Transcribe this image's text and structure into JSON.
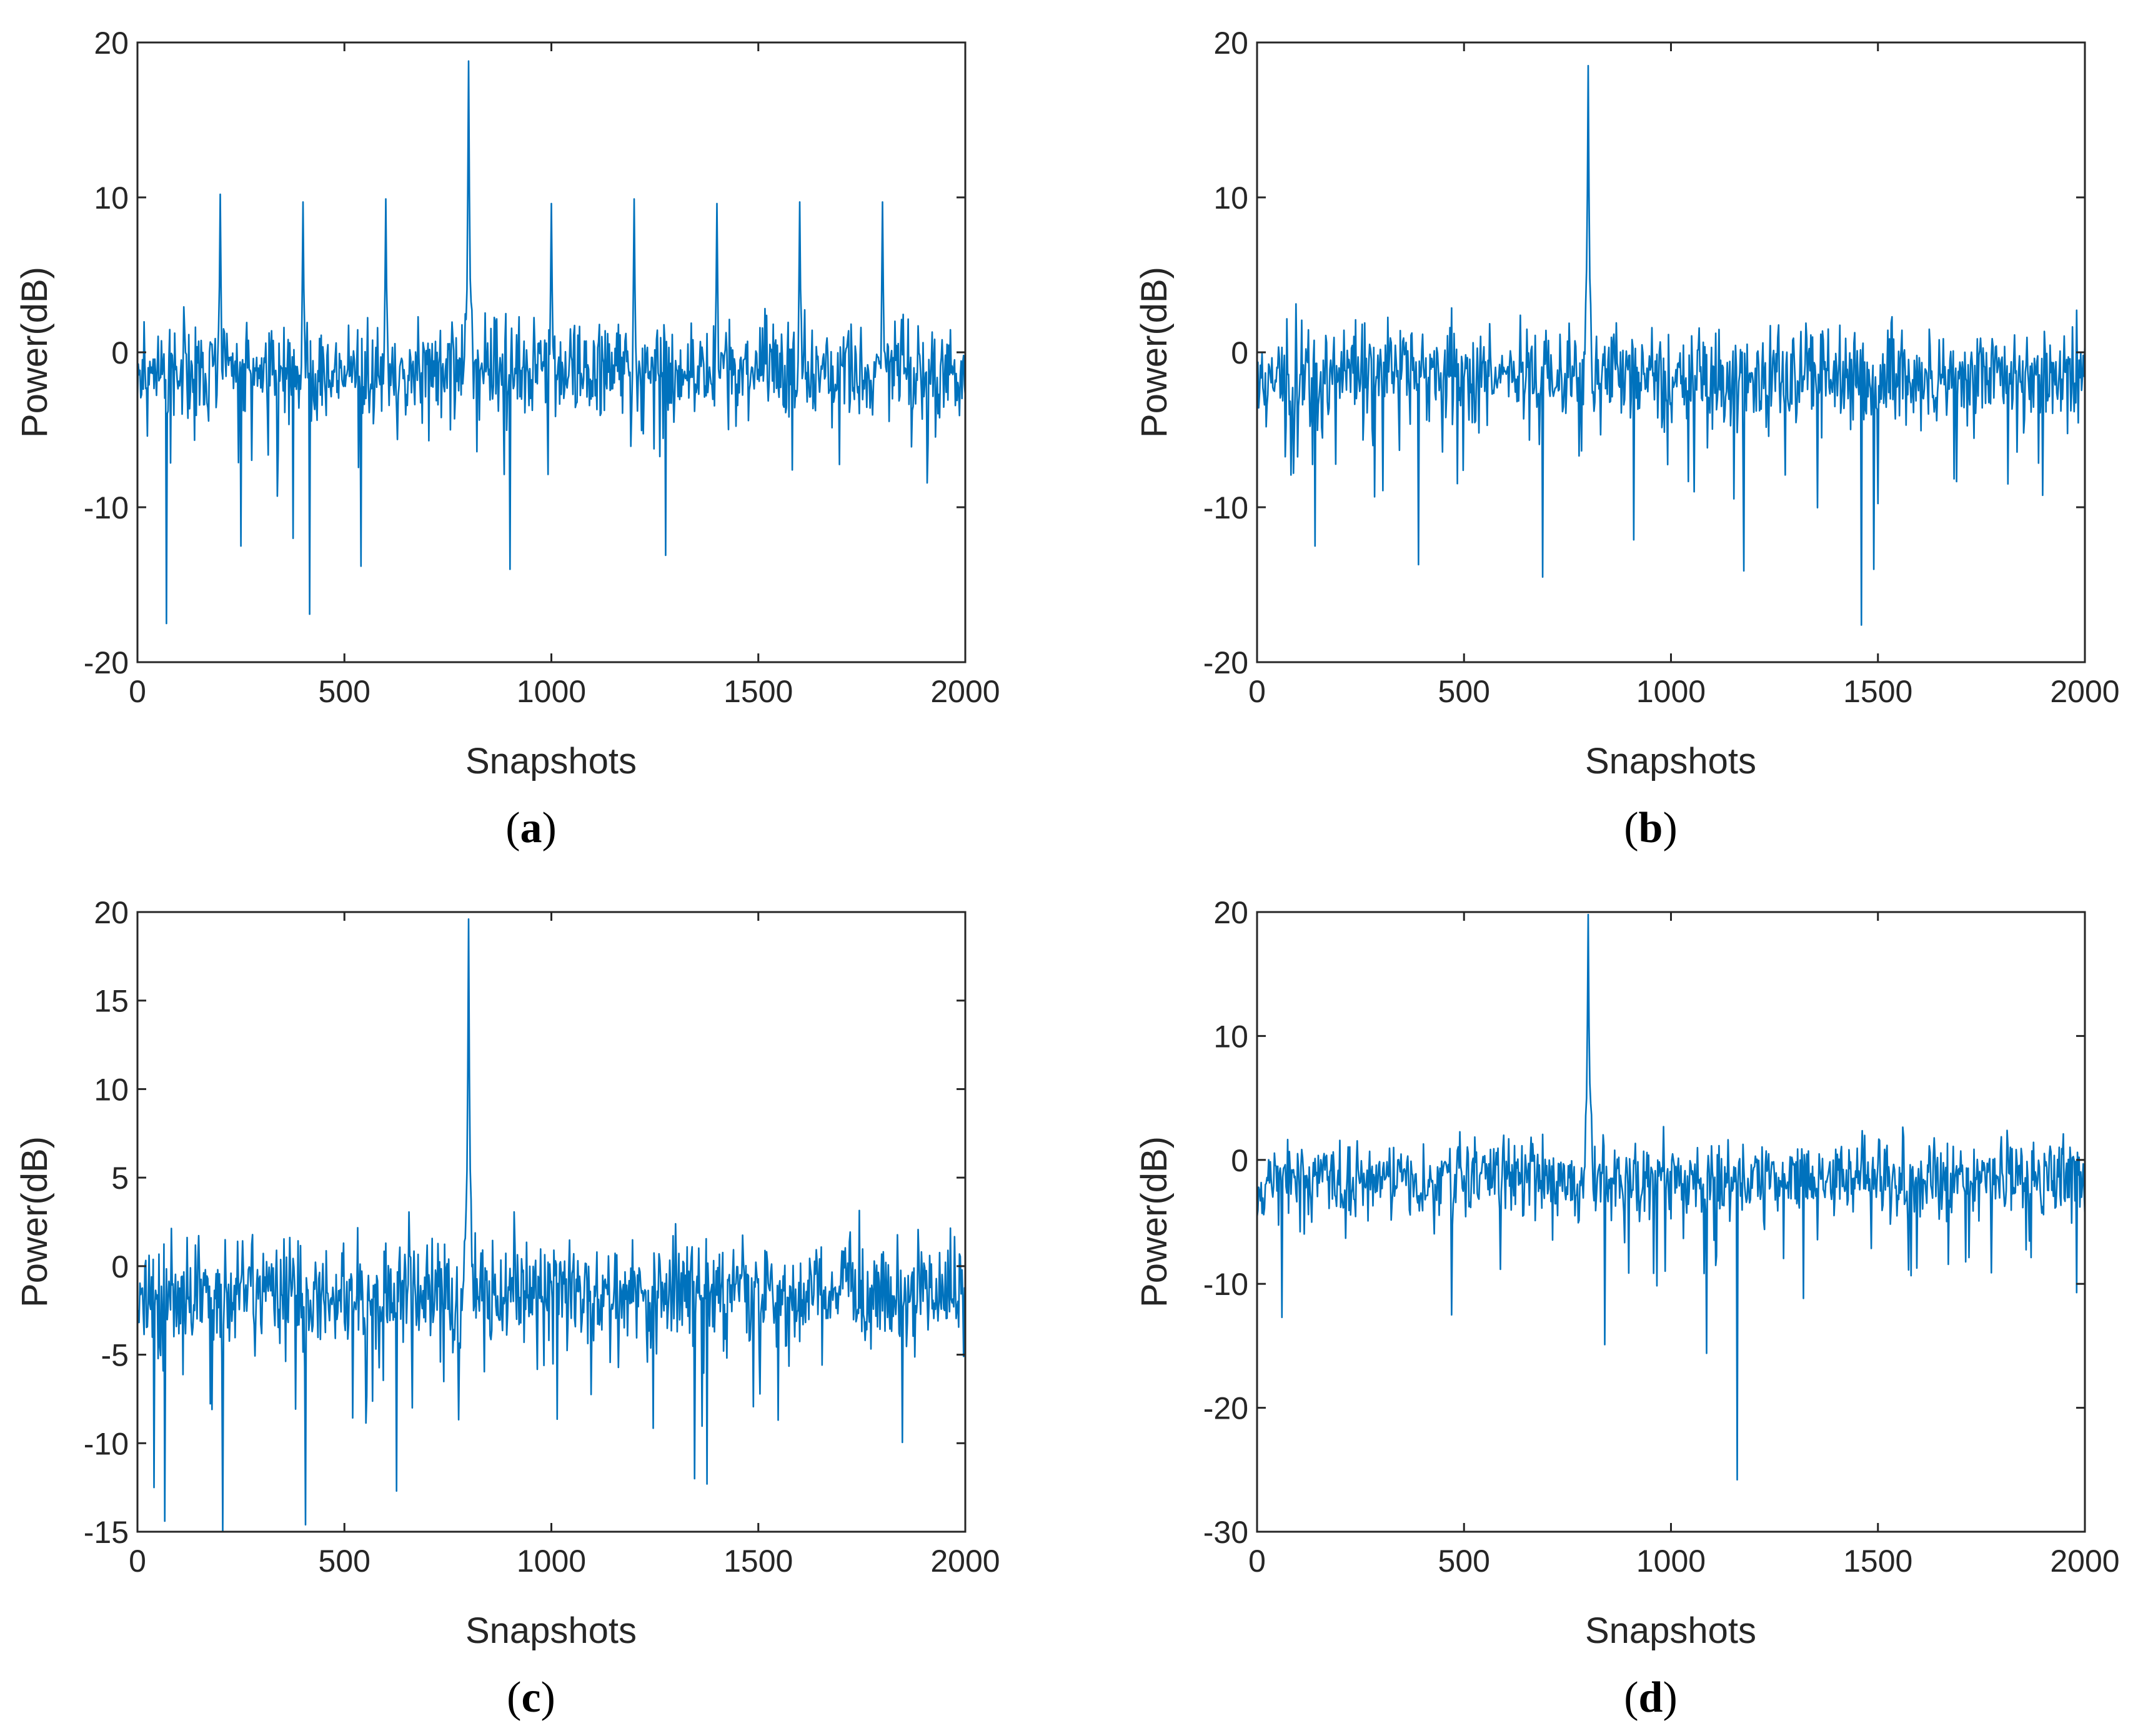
{
  "figure": {
    "line_color": "#0072BD",
    "axis_color": "#262626"
  },
  "chart_data": [
    {
      "id": "a",
      "type": "line",
      "caption_letter": "a",
      "xlabel": "Snapshots",
      "ylabel": "Power(dB)",
      "xlim": [
        0,
        2000
      ],
      "ylim": [
        -20,
        20
      ],
      "xticks": [
        0,
        500,
        1000,
        1500,
        2000
      ],
      "yticks": [
        -20,
        -10,
        0,
        10,
        20
      ],
      "x_tick_labels": [
        "0",
        "500",
        "1000",
        "1500",
        "2000"
      ],
      "y_tick_labels": [
        "-20",
        "-10",
        "0",
        "10",
        "20"
      ],
      "noise_level": -1.2,
      "noise_spread": 2.8,
      "seed": 11,
      "peaks": [
        {
          "x": 200,
          "y": 10.2
        },
        {
          "x": 400,
          "y": 9.7
        },
        {
          "x": 600,
          "y": 9.9
        },
        {
          "x": 800,
          "y": 18.8
        },
        {
          "x": 1000,
          "y": 9.6
        },
        {
          "x": 1200,
          "y": 9.9
        },
        {
          "x": 1400,
          "y": 9.6
        },
        {
          "x": 1600,
          "y": 9.7
        },
        {
          "x": 1800,
          "y": 9.7
        }
      ],
      "dips": [
        {
          "x": 70,
          "y": -17.5
        },
        {
          "x": 415,
          "y": -16.9
        },
        {
          "x": 540,
          "y": -13.8
        },
        {
          "x": 900,
          "y": -14.0
        },
        {
          "x": 1275,
          "y": -13.1
        },
        {
          "x": 250,
          "y": -12.5
        },
        {
          "x": 375,
          "y": -12.0
        }
      ]
    },
    {
      "id": "b",
      "type": "line",
      "caption_letter": "b",
      "xlabel": "Snapshots",
      "ylabel": "Power(dB)",
      "xlim": [
        0,
        2000
      ],
      "ylim": [
        -20,
        20
      ],
      "xticks": [
        0,
        500,
        1000,
        1500,
        2000
      ],
      "yticks": [
        -20,
        -10,
        0,
        10,
        20
      ],
      "x_tick_labels": [
        "0",
        "500",
        "1000",
        "1500",
        "2000"
      ],
      "y_tick_labels": [
        "-20",
        "-10",
        "0",
        "10",
        "20"
      ],
      "noise_level": -1.5,
      "noise_spread": 2.8,
      "seed": 23,
      "peaks": [
        {
          "x": 800,
          "y": 18.5
        }
      ],
      "dips": [
        {
          "x": 1460,
          "y": -17.6
        },
        {
          "x": 690,
          "y": -14.5
        },
        {
          "x": 1175,
          "y": -14.1
        },
        {
          "x": 1490,
          "y": -14.0
        },
        {
          "x": 390,
          "y": -13.7
        },
        {
          "x": 140,
          "y": -12.5
        },
        {
          "x": 910,
          "y": -12.1
        }
      ]
    },
    {
      "id": "c",
      "type": "line",
      "caption_letter": "c",
      "xlabel": "Snapshots",
      "ylabel": "Power(dB)",
      "xlim": [
        0,
        2000
      ],
      "ylim": [
        -15,
        20
      ],
      "xticks": [
        0,
        500,
        1000,
        1500,
        2000
      ],
      "yticks": [
        -15,
        -10,
        -5,
        0,
        5,
        10,
        15,
        20
      ],
      "x_tick_labels": [
        "0",
        "500",
        "1000",
        "1500",
        "2000"
      ],
      "y_tick_labels": [
        "-15",
        "-10",
        "-5",
        "0",
        "5",
        "10",
        "15",
        "20"
      ],
      "noise_level": -1.5,
      "noise_spread": 2.8,
      "seed": 37,
      "peaks": [
        {
          "x": 800,
          "y": 19.6
        }
      ],
      "dips": [
        {
          "x": 205,
          "y": -15.0
        },
        {
          "x": 405,
          "y": -14.6
        },
        {
          "x": 65,
          "y": -14.4
        },
        {
          "x": 40,
          "y": -12.5
        },
        {
          "x": 625,
          "y": -12.7
        },
        {
          "x": 1375,
          "y": -12.3
        },
        {
          "x": 1345,
          "y": -12.0
        }
      ]
    },
    {
      "id": "d",
      "type": "line",
      "caption_letter": "d",
      "xlabel": "Snapshots",
      "ylabel": "Power(dB)",
      "xlim": [
        0,
        2000
      ],
      "ylim": [
        -30,
        20
      ],
      "xticks": [
        0,
        500,
        1000,
        1500,
        2000
      ],
      "yticks": [
        -30,
        -20,
        -10,
        0,
        10,
        20
      ],
      "x_tick_labels": [
        "0",
        "500",
        "1000",
        "1500",
        "2000"
      ],
      "y_tick_labels": [
        "-30",
        "-20",
        "-10",
        "0",
        "10",
        "20"
      ],
      "noise_level": -1.5,
      "noise_spread": 2.8,
      "seed": 53,
      "peaks": [
        {
          "x": 800,
          "y": 19.8
        }
      ],
      "dips": [
        {
          "x": 1160,
          "y": -25.8
        },
        {
          "x": 1085,
          "y": -15.6
        },
        {
          "x": 840,
          "y": -14.9
        },
        {
          "x": 60,
          "y": -12.7
        },
        {
          "x": 470,
          "y": -12.5
        },
        {
          "x": 1980,
          "y": -10.7
        }
      ]
    }
  ]
}
